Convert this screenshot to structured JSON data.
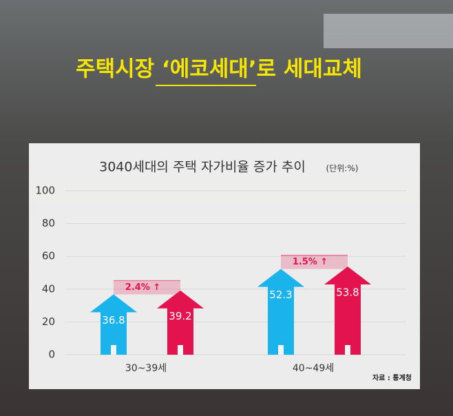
{
  "headline": "주택시장 ‘에코세대’로 세대교체",
  "chart_data": {
    "type": "house-bar",
    "title": "3040세대의 주택 자가비율 증가 추이",
    "unit": "(단위:%)",
    "categories": [
      "30~39세",
      "40~49세"
    ],
    "series": [
      {
        "color": "#1ab3ec",
        "values": [
          36.8,
          52.3
        ]
      },
      {
        "color": "#e3134f",
        "values": [
          39.2,
          53.8
        ]
      }
    ],
    "annotations": [
      "2.4% ↑",
      "1.5% ↑"
    ],
    "annotation_color": "#e3134f",
    "ylim": [
      0,
      100
    ],
    "yticks": [
      0,
      20,
      40,
      60,
      80,
      100
    ],
    "grid": true,
    "source": "자료 : 통계청"
  }
}
